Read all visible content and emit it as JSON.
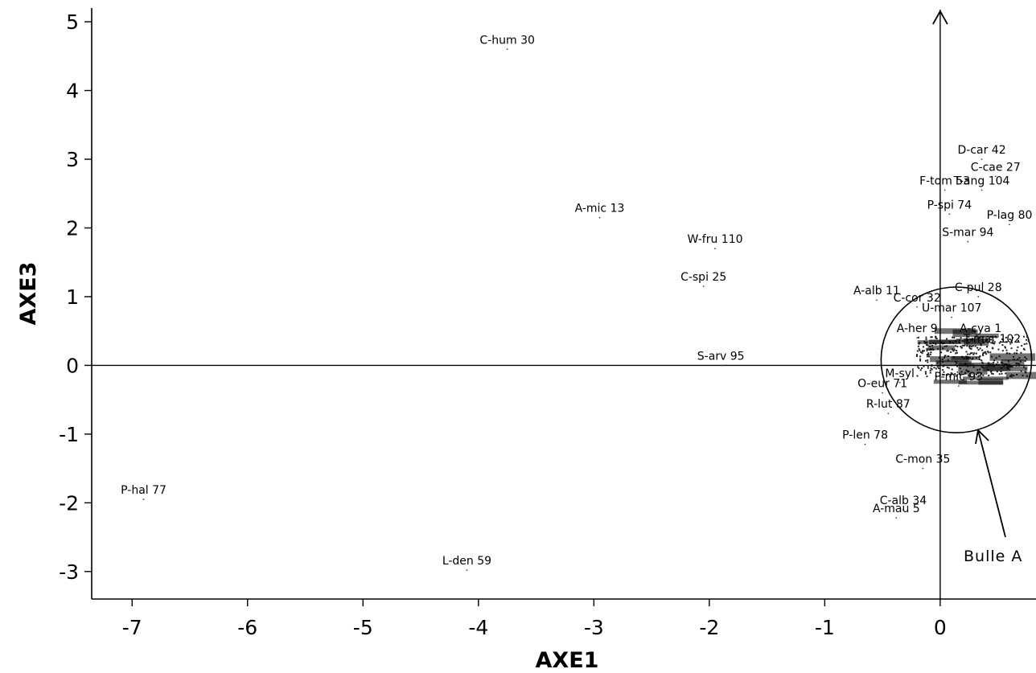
{
  "chart_data": {
    "type": "scatter",
    "xlabel": "AXE1",
    "ylabel": "AXE3",
    "xlim": [
      -7.35,
      0.83
    ],
    "ylim": [
      -3.4,
      5.2
    ],
    "x_ticks": [
      "-7",
      "-6",
      "-5",
      "-4",
      "-3",
      "-2",
      "-1",
      "0"
    ],
    "y_ticks": [
      "5",
      "4",
      "3",
      "2",
      "1",
      "0",
      "-1",
      "-2",
      "-3"
    ],
    "grid": false,
    "labeled_points": [
      {
        "label": "C-hum 30",
        "x": -3.75,
        "y": 4.6
      },
      {
        "label": "D-car 42",
        "x": 0.36,
        "y": 3.0
      },
      {
        "label": "C-cae 27",
        "x": 0.48,
        "y": 2.75
      },
      {
        "label": "F-tom 53",
        "x": 0.04,
        "y": 2.55
      },
      {
        "label": "T-ang 104",
        "x": 0.36,
        "y": 2.55
      },
      {
        "label": "A-mic 13",
        "x": -2.95,
        "y": 2.15
      },
      {
        "label": "P-spi 74",
        "x": 0.08,
        "y": 2.2
      },
      {
        "label": "P-lag 80",
        "x": 0.6,
        "y": 2.05
      },
      {
        "label": "S-mar 94",
        "x": 0.24,
        "y": 1.8
      },
      {
        "label": "W-fru 110",
        "x": -1.95,
        "y": 1.7
      },
      {
        "label": "C-spi 25",
        "x": -2.05,
        "y": 1.15
      },
      {
        "label": "C-pul 28",
        "x": 0.33,
        "y": 1.0
      },
      {
        "label": "A-alb 11",
        "x": -0.55,
        "y": 0.95
      },
      {
        "label": "C-cor 32",
        "x": -0.2,
        "y": 0.85
      },
      {
        "label": "U-mar 107",
        "x": 0.1,
        "y": 0.7
      },
      {
        "label": "A-cya 1",
        "x": 0.35,
        "y": 0.4
      },
      {
        "label": "A-her 9",
        "x": -0.2,
        "y": 0.4
      },
      {
        "label": "T-mar 102",
        "x": 0.45,
        "y": 0.25
      },
      {
        "label": "S-arv 95",
        "x": -1.9,
        "y": 0.0
      },
      {
        "label": "M-syl",
        "x": -0.35,
        "y": -0.25
      },
      {
        "label": "P-mic 93",
        "x": 0.16,
        "y": -0.3
      },
      {
        "label": "O-eur 71",
        "x": -0.5,
        "y": -0.4
      },
      {
        "label": "R-lut 87",
        "x": -0.45,
        "y": -0.7
      },
      {
        "label": "P-len 78",
        "x": -0.65,
        "y": -1.15
      },
      {
        "label": "C-mon 35",
        "x": -0.15,
        "y": -1.5
      },
      {
        "label": "P-hal 77",
        "x": -6.9,
        "y": -1.95
      },
      {
        "label": "C-alb 34",
        "x": -0.32,
        "y": -2.1
      },
      {
        "label": "A-mau 5",
        "x": -0.38,
        "y": -2.22
      },
      {
        "label": "L-den 59",
        "x": -4.1,
        "y": -2.98
      }
    ],
    "annotations": [
      {
        "text": "Bulle A",
        "type": "circle-callout",
        "circle_center": [
          0.14,
          0.08
        ],
        "circle_radius_y": 1.06
      }
    ]
  }
}
